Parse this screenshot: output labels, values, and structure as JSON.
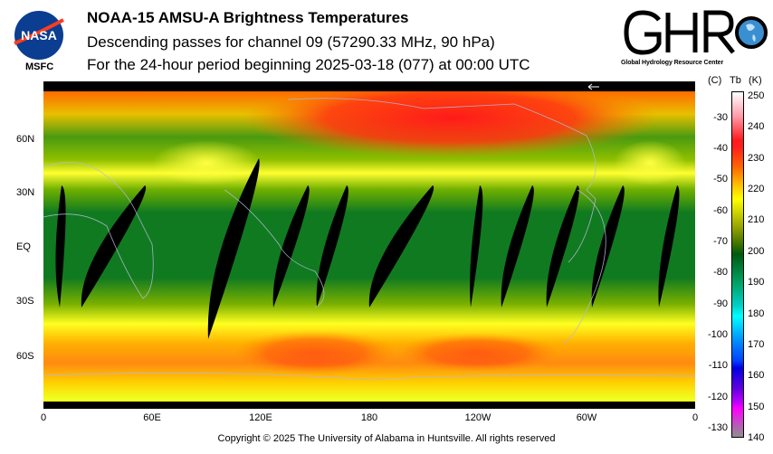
{
  "header": {
    "title": "NOAA-15 AMSU-A Brightness Temperatures",
    "subtitle": "Descending passes for channel 09 (57290.33 MHz, 90 hPa)",
    "period": "For the 24-hour period beginning 2025-03-18 (077) at 00:00 UTC"
  },
  "logos": {
    "nasa": "NASA",
    "msfc": "MSFC",
    "ghrc": "GHRC",
    "ghrc_full": "Global Hydrology Resource Center"
  },
  "map": {
    "x_ticks": [
      "0",
      "60E",
      "120E",
      "180",
      "120W",
      "60W",
      "0"
    ],
    "y_ticks": [
      "60N",
      "30N",
      "EQ",
      "30S",
      "60S"
    ]
  },
  "colorbar": {
    "celsius_label": "(C)",
    "tb_label": "Tb",
    "kelvin_label": "(K)",
    "kelvin_ticks": [
      "250",
      "240",
      "230",
      "220",
      "210",
      "200",
      "190",
      "180",
      "170",
      "160",
      "150",
      "140"
    ],
    "celsius_ticks": [
      "-30",
      "-40",
      "-50",
      "-60",
      "-70",
      "-80",
      "-90",
      "-100",
      "-110",
      "-120",
      "-130"
    ],
    "range_k": [
      140,
      250
    ]
  },
  "footer": {
    "copyright": "Copyright © 2025 The University of Alabama in Huntsville.  All rights reserved"
  }
}
